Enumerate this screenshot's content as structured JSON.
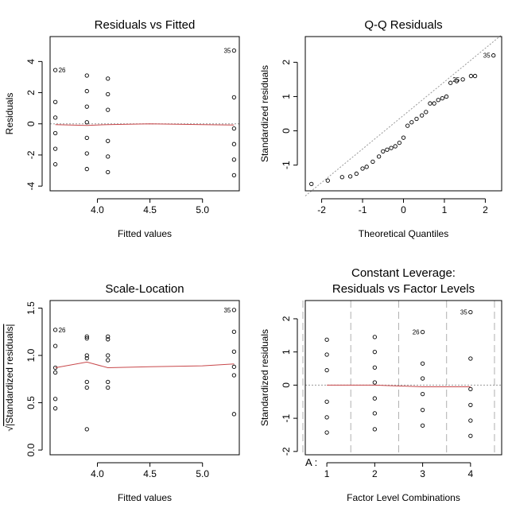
{
  "colors": {
    "smooth": "#c8484b",
    "reference": "#999999",
    "axis": "#000000",
    "grid": "#b0b0b0"
  },
  "chart_data": [
    {
      "id": "p1",
      "type": "scatter",
      "title": "Residuals vs Fitted",
      "xlabel": "Fitted values",
      "ylabel": "Residuals",
      "xlim": [
        3.55,
        5.35
      ],
      "ylim": [
        -4.3,
        5.6
      ],
      "xticks": [
        4.0,
        4.5,
        5.0
      ],
      "xtick_labels": [
        "4.0",
        "4.5",
        "5.0"
      ],
      "yticks": [
        -4,
        -2,
        0,
        2,
        4
      ],
      "ytick_labels": [
        "-4",
        "-2",
        "0",
        "2",
        "4"
      ],
      "refline": 0,
      "points": [
        [
          3.6,
          3.45
        ],
        [
          3.6,
          1.4
        ],
        [
          3.6,
          0.4
        ],
        [
          3.6,
          -0.6
        ],
        [
          3.6,
          -1.6
        ],
        [
          3.6,
          -2.6
        ],
        [
          3.9,
          3.1
        ],
        [
          3.9,
          2.1
        ],
        [
          3.9,
          1.1
        ],
        [
          3.9,
          0.1
        ],
        [
          3.9,
          -0.9
        ],
        [
          3.9,
          -1.9
        ],
        [
          3.9,
          -2.9
        ],
        [
          4.1,
          2.9
        ],
        [
          4.1,
          1.9
        ],
        [
          4.1,
          0.9
        ],
        [
          4.1,
          -1.1
        ],
        [
          4.1,
          -2.1
        ],
        [
          4.1,
          -3.1
        ],
        [
          5.3,
          4.7
        ],
        [
          5.3,
          1.7
        ],
        [
          5.3,
          -0.3
        ],
        [
          5.3,
          -1.3
        ],
        [
          5.3,
          -2.3
        ],
        [
          5.3,
          -3.3
        ]
      ],
      "smooth": [
        [
          3.6,
          -0.05
        ],
        [
          3.9,
          -0.1
        ],
        [
          4.1,
          -0.05
        ],
        [
          4.5,
          0.0
        ],
        [
          5.0,
          -0.05
        ],
        [
          5.3,
          -0.08
        ]
      ],
      "labels": [
        {
          "text": "26",
          "at": [
            3.6,
            3.45
          ],
          "pos": "right"
        },
        {
          "text": "35",
          "at": [
            5.3,
            4.7
          ],
          "pos": "left"
        }
      ]
    },
    {
      "id": "p2",
      "type": "scatter",
      "title": "Q-Q Residuals",
      "xlabel": "Theoretical Quantiles",
      "ylabel": "Standardized residuals",
      "xlim": [
        -2.4,
        2.4
      ],
      "ylim": [
        -1.75,
        2.75
      ],
      "xticks": [
        -2,
        -1,
        0,
        1,
        2
      ],
      "xtick_labels": [
        "-2",
        "-1",
        "0",
        "1",
        "2"
      ],
      "yticks": [
        -1,
        0,
        1,
        2
      ],
      "ytick_labels": [
        "-1",
        "0",
        "1",
        "2"
      ],
      "qqline": [
        [
          -2.4,
          -1.9
        ],
        [
          2.4,
          2.8
        ]
      ],
      "points": [
        [
          -2.25,
          -1.55
        ],
        [
          -1.85,
          -1.45
        ],
        [
          -1.5,
          -1.35
        ],
        [
          -1.3,
          -1.33
        ],
        [
          -1.15,
          -1.25
        ],
        [
          -1.0,
          -1.1
        ],
        [
          -0.9,
          -1.05
        ],
        [
          -0.75,
          -0.9
        ],
        [
          -0.6,
          -0.75
        ],
        [
          -0.5,
          -0.6
        ],
        [
          -0.4,
          -0.55
        ],
        [
          -0.3,
          -0.5
        ],
        [
          -0.2,
          -0.45
        ],
        [
          -0.1,
          -0.35
        ],
        [
          0.0,
          -0.2
        ],
        [
          0.1,
          0.15
        ],
        [
          0.2,
          0.25
        ],
        [
          0.32,
          0.35
        ],
        [
          0.45,
          0.45
        ],
        [
          0.55,
          0.55
        ],
        [
          0.65,
          0.8
        ],
        [
          0.75,
          0.8
        ],
        [
          0.85,
          0.9
        ],
        [
          0.95,
          0.95
        ],
        [
          1.05,
          1.0
        ],
        [
          1.15,
          1.4
        ],
        [
          1.3,
          1.45
        ],
        [
          1.45,
          1.5
        ],
        [
          1.65,
          1.6
        ],
        [
          1.75,
          1.6
        ],
        [
          2.2,
          2.2
        ]
      ],
      "labels": [
        {
          "text": "25",
          "at": [
            1.45,
            1.5
          ],
          "pos": "left"
        },
        {
          "text": "35",
          "at": [
            2.2,
            2.2
          ],
          "pos": "left"
        }
      ]
    },
    {
      "id": "p3",
      "type": "scatter",
      "title": "Scale-Location",
      "xlabel": "Fitted values",
      "ylabel": "√|Standardized residuals|",
      "ylabel_glyph": "√",
      "ylabel_rest": "|Standardized residuals|",
      "xlim": [
        3.55,
        5.35
      ],
      "ylim": [
        -0.05,
        1.58
      ],
      "xticks": [
        4.0,
        4.5,
        5.0
      ],
      "xtick_labels": [
        "4.0",
        "4.5",
        "5.0"
      ],
      "yticks": [
        0.0,
        0.5,
        1.0,
        1.5
      ],
      "ytick_labels": [
        "0.0",
        "0.5",
        "1.0",
        "1.5"
      ],
      "points": [
        [
          3.6,
          1.27
        ],
        [
          3.6,
          1.1
        ],
        [
          3.6,
          0.87
        ],
        [
          3.6,
          0.82
        ],
        [
          3.6,
          0.54
        ],
        [
          3.6,
          0.44
        ],
        [
          3.9,
          1.2
        ],
        [
          3.9,
          1.18
        ],
        [
          3.9,
          1.0
        ],
        [
          3.9,
          0.97
        ],
        [
          3.9,
          0.72
        ],
        [
          3.9,
          0.66
        ],
        [
          3.9,
          0.22
        ],
        [
          4.1,
          1.2
        ],
        [
          4.1,
          1.17
        ],
        [
          4.1,
          1.0
        ],
        [
          4.1,
          0.95
        ],
        [
          4.1,
          0.72
        ],
        [
          4.1,
          0.66
        ],
        [
          5.3,
          1.48
        ],
        [
          5.3,
          1.25
        ],
        [
          5.3,
          1.04
        ],
        [
          5.3,
          0.88
        ],
        [
          5.3,
          0.79
        ],
        [
          5.3,
          0.38
        ]
      ],
      "smooth": [
        [
          3.6,
          0.87
        ],
        [
          3.9,
          0.93
        ],
        [
          4.1,
          0.87
        ],
        [
          4.5,
          0.88
        ],
        [
          5.0,
          0.89
        ],
        [
          5.3,
          0.91
        ]
      ],
      "labels": [
        {
          "text": "26",
          "at": [
            3.6,
            1.27
          ],
          "pos": "right"
        },
        {
          "text": "35",
          "at": [
            5.3,
            1.48
          ],
          "pos": "left"
        }
      ]
    },
    {
      "id": "p4",
      "type": "scatter",
      "title": "Constant Leverage:",
      "title2": "Residuals vs Factor Levels",
      "xlabel": "Factor Level Combinations",
      "ylabel": "Standardized residuals",
      "factor_label": "A :",
      "xlim": [
        0.55,
        4.65
      ],
      "ylim": [
        -2.1,
        2.55
      ],
      "xticks": [
        1,
        2,
        3,
        4
      ],
      "xtick_labels": [
        "1",
        "2",
        "3",
        "4"
      ],
      "yticks": [
        -2,
        -1,
        0,
        1,
        2
      ],
      "ytick_labels": [
        "-2",
        "-1",
        "0",
        "1",
        "2"
      ],
      "vlines": [
        0.5,
        1.5,
        2.5,
        3.5,
        4.5
      ],
      "refline": 0,
      "points": [
        [
          1,
          1.37
        ],
        [
          1,
          0.92
        ],
        [
          1,
          0.45
        ],
        [
          1,
          -0.5
        ],
        [
          1,
          -0.97
        ],
        [
          1,
          -1.43
        ],
        [
          2,
          1.45
        ],
        [
          2,
          1.0
        ],
        [
          2,
          0.53
        ],
        [
          2,
          0.08
        ],
        [
          2,
          -0.4
        ],
        [
          2,
          -0.85
        ],
        [
          2,
          -1.33
        ],
        [
          3,
          1.6
        ],
        [
          3,
          0.65
        ],
        [
          3,
          0.2
        ],
        [
          3,
          -0.27
        ],
        [
          3,
          -0.75
        ],
        [
          3,
          -1.22
        ],
        [
          4,
          2.2
        ],
        [
          4,
          0.8
        ],
        [
          4,
          -0.12
        ],
        [
          4,
          -0.6
        ],
        [
          4,
          -1.07
        ],
        [
          4,
          -1.53
        ]
      ],
      "smooth": [
        [
          1,
          0.0
        ],
        [
          2,
          0.0
        ],
        [
          3,
          -0.05
        ],
        [
          4,
          -0.05
        ]
      ],
      "labels": [
        {
          "text": "26",
          "at": [
            3,
            1.6
          ],
          "pos": "left"
        },
        {
          "text": "35",
          "at": [
            4,
            2.2
          ],
          "pos": "left"
        }
      ]
    }
  ]
}
